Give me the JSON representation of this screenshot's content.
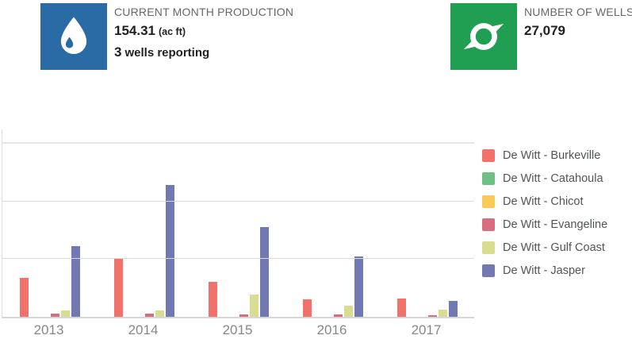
{
  "cards": [
    {
      "label": "CURRENT MONTH PRODUCTION",
      "value": "154.31",
      "unit": "(ac ft)",
      "sub_value": "3",
      "sub_label": "wells reporting",
      "icon": "water-drop-icon",
      "icon_bg": "#2a6ba6"
    },
    {
      "label": "NUMBER OF WELLS",
      "value": "27,079",
      "icon": "cyclone-icon",
      "icon_bg": "#209e52"
    }
  ],
  "chart_data": {
    "type": "bar",
    "title": "",
    "xlabel": "",
    "ylabel": "",
    "categories": [
      "2013",
      "2014",
      "2015",
      "2016",
      "2017"
    ],
    "series": [
      {
        "name": "De Witt - Burkeville",
        "color": "#f0726a",
        "values": [
          0.67,
          1.01,
          0.61,
          0.3,
          0.32
        ]
      },
      {
        "name": "De Witt - Catahoula",
        "color": "#6dc185",
        "values": [
          0,
          0,
          0,
          0,
          0
        ]
      },
      {
        "name": "De Witt - Chicot",
        "color": "#f9ca5a",
        "values": [
          0,
          0,
          0,
          0,
          0
        ]
      },
      {
        "name": "De Witt - Evangeline",
        "color": "#d76d7f",
        "values": [
          0.05,
          0.05,
          0.04,
          0.04,
          0.03
        ]
      },
      {
        "name": "De Witt - Gulf Coast",
        "color": "#d8dd92",
        "values": [
          0.11,
          0.11,
          0.38,
          0.2,
          0.12
        ]
      },
      {
        "name": "De Witt - Jasper",
        "color": "#7278b2",
        "values": [
          1.23,
          2.29,
          1.55,
          1.05,
          0.27
        ]
      }
    ],
    "y_axis": {
      "tick_labels_visible": false,
      "gridlines_at": [
        1,
        2,
        3
      ],
      "ylim": [
        0,
        3.25
      ],
      "note": "y-axis tick labels are cropped out of view; values estimated in gridline units (1 unit = one gridline spacing)"
    },
    "grid": true,
    "legend_position": "right"
  }
}
